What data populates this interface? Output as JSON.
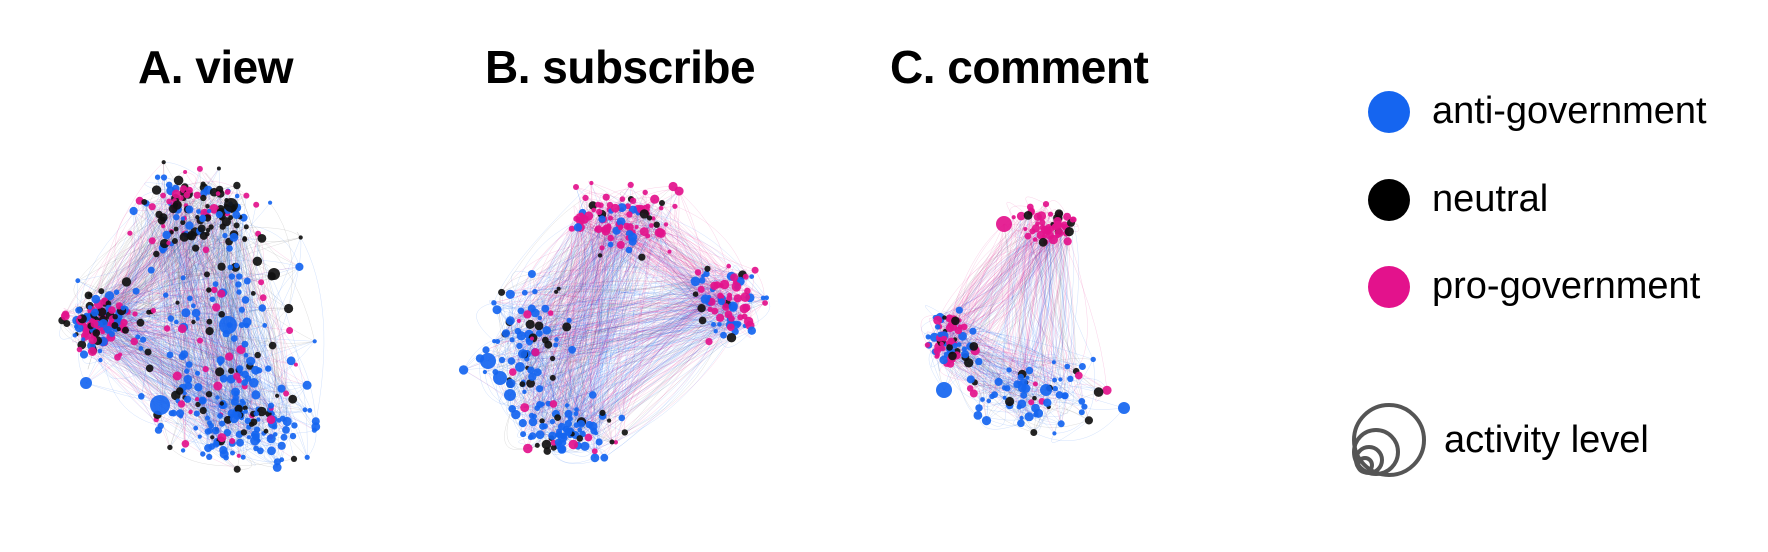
{
  "panels": [
    {
      "title": "A. view"
    },
    {
      "title": "B. subscribe"
    },
    {
      "title": "C. comment"
    }
  ],
  "legend": {
    "items": [
      {
        "label": "anti-government",
        "color": "#1565f0"
      },
      {
        "label": "neutral",
        "color": "#000000"
      },
      {
        "label": "pro-government",
        "color": "#e3128c"
      }
    ],
    "size_label": "activity level",
    "size_icon": "nested-circles-icon"
  },
  "colors": {
    "anti": "#1565f0",
    "neutral": "#111111",
    "pro": "#e3128c"
  }
}
